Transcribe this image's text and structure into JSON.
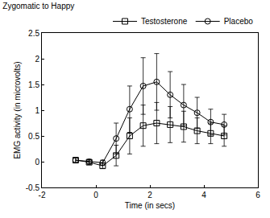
{
  "chart_data": {
    "type": "line",
    "title": "Zygomatic to Happy",
    "x_label": "Time (in secs)",
    "y_label": "EMG activity (in microvolts)",
    "x": [
      -0.75,
      -0.25,
      0.25,
      0.75,
      1.25,
      1.75,
      2.25,
      2.75,
      3.25,
      3.75,
      4.25,
      4.75
    ],
    "series": [
      {
        "name": "Testosterone",
        "color": "#000000",
        "marker": "square-open",
        "line_style": "solid",
        "values": [
          0.03,
          -0.01,
          -0.08,
          0.12,
          0.5,
          0.7,
          0.75,
          0.72,
          0.68,
          0.6,
          0.55,
          0.5
        ],
        "errors": [
          0.05,
          0.04,
          0.05,
          0.2,
          0.35,
          0.4,
          0.4,
          0.35,
          0.3,
          0.25,
          0.2,
          0.2
        ]
      },
      {
        "name": "Placebo",
        "color": "#000000",
        "marker": "circle-open",
        "line_style": "solid",
        "values": [
          0.03,
          0.0,
          -0.02,
          0.45,
          1.02,
          1.47,
          1.55,
          1.3,
          1.1,
          0.95,
          0.77,
          0.72
        ],
        "errors": [
          0.05,
          0.04,
          0.05,
          0.3,
          0.45,
          0.55,
          0.55,
          0.45,
          0.4,
          0.3,
          0.25,
          0.2
        ]
      }
    ],
    "xlim": [
      -2,
      6
    ],
    "xticks": [
      -2,
      0,
      2,
      4,
      6
    ],
    "ylim": [
      -0.5,
      2.5
    ],
    "yticks": [
      -0.5,
      0,
      0.5,
      1,
      1.5,
      2,
      2.5
    ],
    "grid": false,
    "legend": "top right"
  }
}
